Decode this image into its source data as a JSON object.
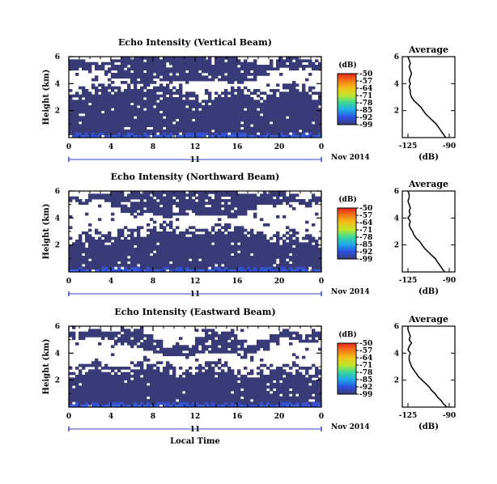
{
  "colorbar": {
    "unit": "(dB)",
    "labels": [
      "-50",
      "-57",
      "-64",
      "-71",
      "-78",
      "-85",
      "-92",
      "-99"
    ],
    "colors": [
      "#e8251c",
      "#f57a18",
      "#f2c219",
      "#bde62a",
      "#38d89a",
      "#1fa8e8",
      "#2b4fe0",
      "#3a3c78"
    ]
  },
  "x_axis": {
    "ticks": [
      "0",
      "4",
      "8",
      "12",
      "16",
      "20",
      "0"
    ],
    "day_label": "11",
    "date_label": "Nov 2014",
    "xlabel": "Local Time"
  },
  "profile": {
    "title": "Average",
    "xlabel": "(dB)",
    "x_ticks": [
      "-125",
      "-90"
    ],
    "y_ticks": [
      "2",
      "4",
      "6"
    ]
  },
  "chart_data": [
    {
      "type": "heatmap",
      "title": "Echo Intensity (Vertical Beam)",
      "ylabel": "Height (km)",
      "y_ticks": [
        "2",
        "4",
        "6"
      ],
      "x_range_hours": [
        0,
        24
      ],
      "y_range_km": [
        0,
        6
      ],
      "fill_top_km": [
        3.2,
        3.4,
        3.6,
        3.7,
        3.5,
        3.8,
        3.9,
        4.0,
        4.2,
        3.9,
        3.3,
        3.0,
        2.9,
        3.1,
        3.3,
        3.4,
        3.5,
        3.2,
        3.0,
        3.3,
        3.6,
        3.9,
        3.5,
        3.1
      ],
      "upper_cloud_km": [
        [
          5.0,
          5.8
        ],
        [
          5.0,
          5.7
        ],
        [
          5.0,
          5.6
        ],
        [
          4.8,
          5.6
        ],
        [
          4.5,
          5.8
        ],
        [
          4.4,
          6.0
        ],
        [
          4.2,
          6.0
        ],
        [
          4.2,
          6.0
        ],
        [
          4.0,
          6.0
        ],
        [
          4.1,
          6.0
        ],
        [
          4.3,
          6.0
        ],
        [
          4.3,
          6.0
        ],
        [
          4.3,
          6.0
        ],
        [
          4.2,
          6.0
        ],
        [
          4.2,
          6.0
        ],
        [
          4.0,
          6.0
        ],
        [
          4.0,
          5.8
        ],
        [
          4.3,
          5.6
        ],
        [
          4.6,
          5.4
        ],
        [
          5.0,
          5.8
        ],
        [
          5.2,
          6.0
        ],
        [
          5.0,
          6.0
        ],
        [
          5.2,
          5.8
        ],
        [
          5.0,
          5.8
        ]
      ],
      "profile_db": [
        -93,
        -95,
        -97,
        -99,
        -101,
        -104,
        -107,
        -110,
        -112,
        -114,
        -117,
        -120,
        -122,
        -123,
        -123,
        -124,
        -123,
        -124,
        -123,
        -122,
        -123,
        -124,
        -123,
        -124,
        -125
      ]
    },
    {
      "type": "heatmap",
      "title": "Echo Intensity (Northward Beam)",
      "ylabel": "Height (km)",
      "y_ticks": [
        "2",
        "4",
        "6"
      ],
      "x_range_hours": [
        0,
        24
      ],
      "y_range_km": [
        0,
        6
      ],
      "fill_top_km": [
        2.4,
        2.6,
        2.8,
        2.7,
        2.9,
        2.8,
        3.0,
        3.2,
        3.3,
        3.4,
        3.1,
        3.0,
        2.9,
        3.1,
        3.2,
        3.3,
        3.1,
        2.9,
        2.7,
        2.5,
        2.6,
        2.8,
        2.5,
        2.3
      ],
      "upper_cloud_km": [
        [
          5.2,
          5.6
        ],
        [
          5.0,
          5.4
        ],
        [
          5.4,
          5.8
        ],
        [
          5.2,
          5.8
        ],
        [
          4.8,
          6.0
        ],
        [
          4.5,
          6.0
        ],
        [
          4.3,
          6.0
        ],
        [
          4.4,
          6.0
        ],
        [
          4.2,
          6.0
        ],
        [
          4.0,
          6.0
        ],
        [
          4.3,
          6.0
        ],
        [
          4.4,
          6.0
        ],
        [
          4.2,
          6.0
        ],
        [
          4.3,
          6.0
        ],
        [
          4.2,
          6.0
        ],
        [
          4.0,
          6.0
        ],
        [
          4.3,
          5.8
        ],
        [
          4.6,
          5.7
        ],
        [
          5.0,
          5.8
        ],
        [
          5.1,
          6.0
        ],
        [
          5.0,
          6.0
        ],
        [
          5.2,
          5.8
        ],
        [
          4.8,
          5.4
        ],
        [
          5.0,
          5.6
        ]
      ],
      "profile_db": [
        -94,
        -96,
        -98,
        -100,
        -102,
        -105,
        -108,
        -111,
        -113,
        -115,
        -118,
        -120,
        -121,
        -123,
        -124,
        -123,
        -125,
        -123,
        -124,
        -123,
        -124,
        -125,
        -124,
        -124,
        -125
      ]
    },
    {
      "type": "heatmap",
      "title": "Echo Intensity (Eastward Beam)",
      "ylabel": "Height (km)",
      "y_ticks": [
        "2",
        "4",
        "6"
      ],
      "x_range_hours": [
        0,
        24
      ],
      "y_range_km": [
        0,
        6
      ],
      "fill_top_km": [
        2.6,
        2.8,
        3.0,
        2.9,
        2.7,
        2.9,
        3.1,
        3.2,
        3.0,
        2.8,
        2.6,
        2.7,
        2.9,
        3.1,
        3.0,
        2.8,
        2.6,
        2.5,
        2.7,
        2.9,
        3.0,
        2.8,
        2.6,
        2.4
      ],
      "upper_cloud_km": [
        [
          5.2,
          5.6
        ],
        [
          5.0,
          5.6
        ],
        [
          5.2,
          5.8
        ],
        [
          5.1,
          5.6
        ],
        [
          4.8,
          5.6
        ],
        [
          4.6,
          5.8
        ],
        [
          4.5,
          5.8
        ],
        [
          4.3,
          5.4
        ],
        [
          4.0,
          5.0
        ],
        [
          3.8,
          4.4
        ],
        [
          3.9,
          4.6
        ],
        [
          3.8,
          4.5
        ],
        [
          4.0,
          5.2
        ],
        [
          4.1,
          5.8
        ],
        [
          4.0,
          5.6
        ],
        [
          4.0,
          5.5
        ],
        [
          3.8,
          5.0
        ],
        [
          4.0,
          4.6
        ],
        [
          4.3,
          5.0
        ],
        [
          4.6,
          5.4
        ],
        [
          5.2,
          5.8
        ],
        [
          5.0,
          5.6
        ],
        [
          4.8,
          5.3
        ],
        [
          4.9,
          5.6
        ]
      ],
      "profile_db": [
        -92,
        -95,
        -97,
        -100,
        -102,
        -105,
        -107,
        -110,
        -113,
        -116,
        -118,
        -120,
        -122,
        -123,
        -124,
        -124,
        -123,
        -125,
        -124,
        -122,
        -124,
        -123,
        -124,
        -125,
        -125
      ]
    }
  ]
}
